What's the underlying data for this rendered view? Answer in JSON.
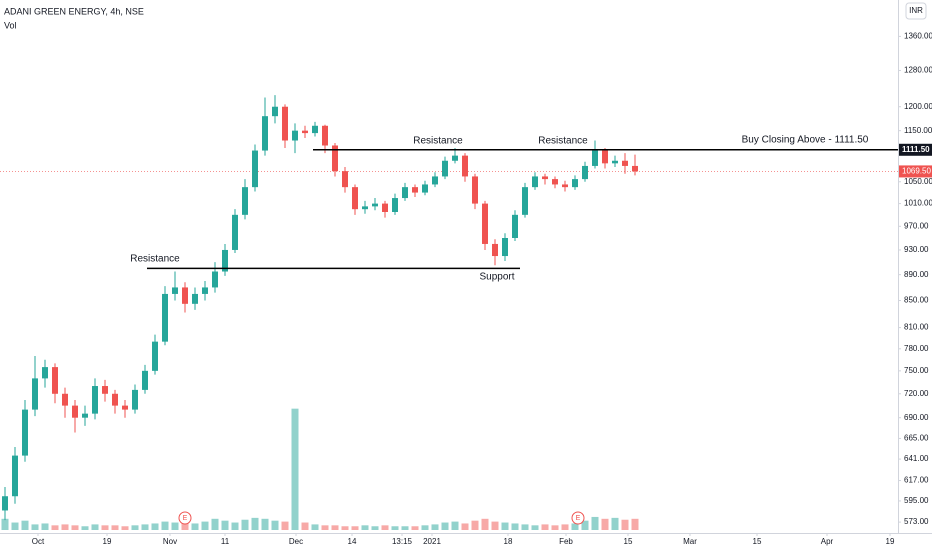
{
  "chart_data": {
    "type": "candlestick",
    "title": "ADANI GREEN ENERGY, 4h, NSE",
    "volume_label": "Vol",
    "currency": "INR",
    "log_scale": true,
    "up_color": "#26a69a",
    "down_color": "#ef5350",
    "ylim": [
      562,
      1451
    ],
    "yticks": [
      {
        "value": 573,
        "label": "573.00"
      },
      {
        "value": 595,
        "label": "595.00"
      },
      {
        "value": 617,
        "label": "617.00"
      },
      {
        "value": 641,
        "label": "641.00"
      },
      {
        "value": 665,
        "label": "665.00"
      },
      {
        "value": 690,
        "label": "690.00"
      },
      {
        "value": 720,
        "label": "720.00"
      },
      {
        "value": 750,
        "label": "750.00"
      },
      {
        "value": 780,
        "label": "780.00"
      },
      {
        "value": 810,
        "label": "810.00"
      },
      {
        "value": 850,
        "label": "850.00"
      },
      {
        "value": 890,
        "label": "890.00"
      },
      {
        "value": 930,
        "label": "930.00"
      },
      {
        "value": 970,
        "label": "970.00"
      },
      {
        "value": 1010,
        "label": "1010.00"
      },
      {
        "value": 1050,
        "label": "1050.00"
      },
      {
        "value": 1150,
        "label": "1150.00"
      },
      {
        "value": 1200,
        "label": "1200.00"
      },
      {
        "value": 1280,
        "label": "1280.00"
      },
      {
        "value": 1360,
        "label": "1360.00"
      }
    ],
    "xlim": [
      0,
      89.8
    ],
    "xticks": [
      {
        "value": 3.8,
        "label": "Oct"
      },
      {
        "value": 10.7,
        "label": "19"
      },
      {
        "value": 17,
        "label": "Nov"
      },
      {
        "value": 22.5,
        "label": "11"
      },
      {
        "value": 29.6,
        "label": "Dec"
      },
      {
        "value": 35.2,
        "label": "14"
      },
      {
        "value": 40.2,
        "label": "13:15"
      },
      {
        "value": 43.2,
        "label": "2021"
      },
      {
        "value": 50.8,
        "label": "18"
      },
      {
        "value": 56.6,
        "label": "Feb"
      },
      {
        "value": 62.8,
        "label": "15"
      },
      {
        "value": 69,
        "label": "Mar"
      },
      {
        "value": 75.7,
        "label": "15"
      },
      {
        "value": 82.7,
        "label": "Apr"
      },
      {
        "value": 89,
        "label": "19"
      }
    ],
    "open": [
      585,
      600,
      645,
      700,
      740,
      755,
      720,
      705,
      690,
      695,
      730,
      720,
      705,
      700,
      725,
      750,
      790,
      860,
      870,
      845,
      860,
      870,
      895,
      930,
      990,
      1040,
      1110,
      1180,
      1200,
      1130,
      1150,
      1145,
      1160,
      1120,
      1070,
      1040,
      1000,
      1005,
      1010,
      995,
      1020,
      1040,
      1030,
      1045,
      1060,
      1090,
      1100,
      1060,
      1010,
      940,
      920,
      950,
      990,
      1040,
      1060,
      1055,
      1045,
      1040,
      1055,
      1080,
      1110,
      1085,
      1090,
      1080
    ],
    "high": [
      610,
      655,
      712,
      770,
      765,
      760,
      728,
      712,
      705,
      740,
      738,
      725,
      712,
      732,
      758,
      800,
      872,
      895,
      878,
      870,
      880,
      910,
      940,
      1000,
      1055,
      1122,
      1220,
      1225,
      1205,
      1165,
      1160,
      1168,
      1162,
      1125,
      1078,
      1045,
      1015,
      1020,
      1015,
      1028,
      1048,
      1045,
      1052,
      1068,
      1098,
      1115,
      1105,
      1065,
      1015,
      948,
      958,
      998,
      1048,
      1068,
      1065,
      1060,
      1052,
      1062,
      1088,
      1130,
      1115,
      1100,
      1105,
      1102
    ],
    "low": [
      575,
      592,
      638,
      692,
      728,
      708,
      690,
      672,
      680,
      688,
      710,
      695,
      690,
      695,
      720,
      745,
      785,
      850,
      832,
      836,
      850,
      862,
      888,
      925,
      982,
      1032,
      1100,
      1165,
      1115,
      1105,
      1135,
      1138,
      1105,
      1060,
      1030,
      990,
      992,
      998,
      985,
      990,
      1015,
      1022,
      1025,
      1040,
      1055,
      1085,
      1050,
      1000,
      930,
      905,
      912,
      945,
      985,
      1035,
      1045,
      1038,
      1032,
      1035,
      1050,
      1075,
      1075,
      1078,
      1065,
      1062
    ],
    "close": [
      600,
      645,
      700,
      740,
      755,
      720,
      705,
      690,
      695,
      730,
      720,
      705,
      700,
      725,
      750,
      790,
      860,
      870,
      845,
      860,
      870,
      895,
      930,
      990,
      1040,
      1110,
      1180,
      1200,
      1130,
      1150,
      1145,
      1160,
      1120,
      1070,
      1040,
      1000,
      1005,
      1010,
      995,
      1020,
      1040,
      1030,
      1045,
      1060,
      1090,
      1100,
      1060,
      1010,
      940,
      920,
      950,
      990,
      1040,
      1060,
      1055,
      1045,
      1040,
      1055,
      1080,
      1110,
      1085,
      1090,
      1080,
      1069.5
    ],
    "volume": [
      12,
      8,
      10,
      6,
      7,
      5,
      6,
      5,
      4,
      6,
      5,
      5,
      4,
      5,
      6,
      7,
      9,
      8,
      10,
      7,
      9,
      12,
      10,
      8,
      11,
      13,
      12,
      10,
      9,
      130,
      8,
      6,
      5,
      5,
      4,
      4,
      5,
      4,
      5,
      4,
      4,
      4,
      5,
      6,
      8,
      9,
      7,
      10,
      12,
      9,
      8,
      7,
      6,
      5,
      6,
      5,
      6,
      7,
      10,
      14,
      12,
      13,
      11,
      12
    ],
    "vlim": [
      0,
      150
    ],
    "levels": [
      {
        "price": 1111.5,
        "x": [
          31.3,
          89.8
        ],
        "label": "1111.50"
      },
      {
        "price": 900,
        "x": [
          14.7,
          52
        ]
      }
    ],
    "last_price_label": "1069.50",
    "annotations": [
      "Resistance",
      "Resistance",
      "Resistance",
      "Support",
      "Buy Closing Above - 1111.50"
    ],
    "earnings": [
      "E",
      "E"
    ]
  }
}
